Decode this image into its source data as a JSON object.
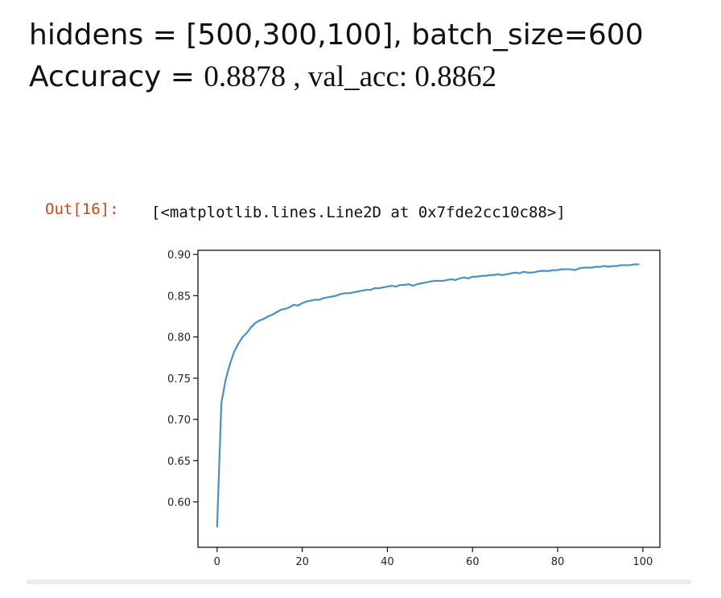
{
  "header": {
    "line1": "hiddens = [500,300,100], batch_size=600",
    "line2_prefix": "Accuracy = ",
    "line2_value": "0.8878 , val_acc: 0.8862"
  },
  "cell": {
    "prompt": "Out[16]:",
    "output": "[<matplotlib.lines.Line2D at 0x7fde2cc10c88>]"
  },
  "colors": {
    "line": "#4a90c4",
    "prompt": "#d84315"
  },
  "chart_data": {
    "type": "line",
    "title": "",
    "xlabel": "",
    "ylabel": "",
    "xlim": [
      -4.5,
      104
    ],
    "ylim": [
      0.545,
      0.905
    ],
    "xticks": [
      0,
      20,
      40,
      60,
      80,
      100
    ],
    "yticks": [
      0.6,
      0.65,
      0.7,
      0.75,
      0.8,
      0.85,
      0.9
    ],
    "grid": false,
    "series": [
      {
        "values": [
          0.57,
          0.72,
          0.748,
          0.767,
          0.782,
          0.792,
          0.8,
          0.805,
          0.812,
          0.817,
          0.82,
          0.822,
          0.825,
          0.827,
          0.83,
          0.833,
          0.834,
          0.836,
          0.839,
          0.838,
          0.841,
          0.843,
          0.844,
          0.845,
          0.845,
          0.847,
          0.848,
          0.849,
          0.85,
          0.852,
          0.853,
          0.853,
          0.854,
          0.855,
          0.856,
          0.857,
          0.857,
          0.859,
          0.859,
          0.86,
          0.861,
          0.862,
          0.861,
          0.863,
          0.863,
          0.864,
          0.862,
          0.864,
          0.865,
          0.866,
          0.867,
          0.868,
          0.868,
          0.868,
          0.869,
          0.87,
          0.869,
          0.871,
          0.872,
          0.871,
          0.873,
          0.873,
          0.874,
          0.874,
          0.875,
          0.875,
          0.876,
          0.875,
          0.876,
          0.877,
          0.878,
          0.877,
          0.879,
          0.878,
          0.878,
          0.879,
          0.88,
          0.88,
          0.88,
          0.881,
          0.881,
          0.882,
          0.882,
          0.882,
          0.881,
          0.883,
          0.884,
          0.884,
          0.884,
          0.885,
          0.885,
          0.886,
          0.885,
          0.886,
          0.886,
          0.887,
          0.887,
          0.887,
          0.888,
          0.888
        ]
      }
    ]
  }
}
